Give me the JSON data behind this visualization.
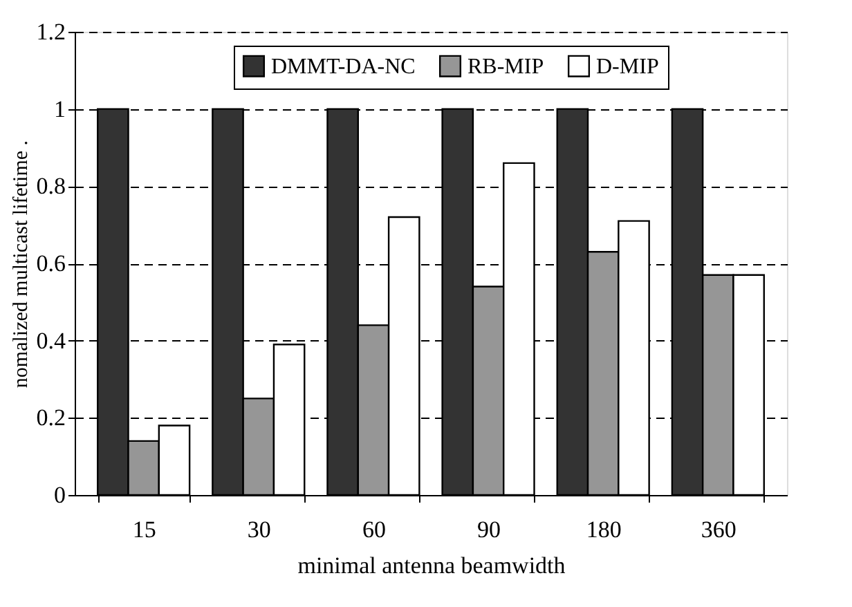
{
  "chart_data": {
    "type": "bar",
    "xlabel": "minimal antenna beamwidth",
    "ylabel": "nomalized multicast lifetime .",
    "categories": [
      "15",
      "30",
      "60",
      "90",
      "180",
      "360"
    ],
    "series": [
      {
        "name": "DMMT-DA-NC",
        "color": "#333333",
        "values": [
          1,
          1,
          1,
          1,
          1,
          1
        ]
      },
      {
        "name": "RB-MIP",
        "color": "#969696",
        "values": [
          0.14,
          0.25,
          0.44,
          0.54,
          0.63,
          0.57
        ]
      },
      {
        "name": "D-MIP",
        "color": "#ffffff",
        "values": [
          0.18,
          0.39,
          0.72,
          0.86,
          0.71,
          0.57
        ]
      }
    ],
    "ylim": [
      0,
      1.2
    ],
    "yticks": [
      0,
      0.2,
      0.4,
      0.6,
      0.8,
      1,
      1.2
    ],
    "grid": "y",
    "legend": "top",
    "line_style": "dashed"
  }
}
